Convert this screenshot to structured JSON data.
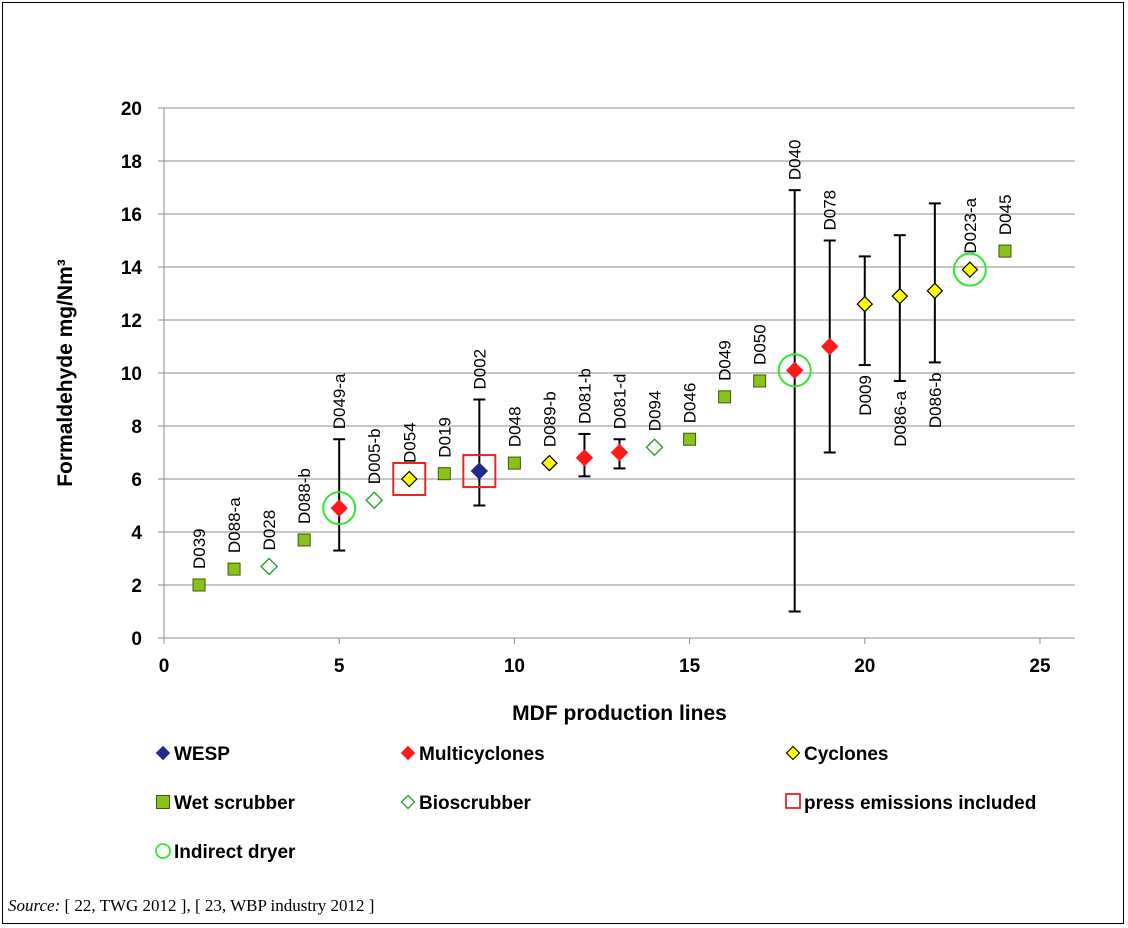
{
  "chart_data": {
    "type": "scatter",
    "xlabel": "MDF production lines",
    "ylabel": "Formaldehyde mg/Nm³",
    "xlim": [
      0,
      26
    ],
    "ylim": [
      0,
      20
    ],
    "x_ticks": [
      "0",
      "5",
      "10",
      "15",
      "20",
      "25"
    ],
    "y_ticks": [
      "0",
      "2",
      "4",
      "6",
      "8",
      "10",
      "12",
      "14",
      "16",
      "18",
      "20"
    ],
    "grid": "horizontal",
    "legend_position": "bottom",
    "colors": {
      "wesp": "#1f2a8c",
      "multicyclones": "#ff1a1a",
      "cyclones": "#ffff00",
      "wet_scrubber": "#88c21a",
      "bioscrubber": "#2e9e2e",
      "press_box": "#e8242a",
      "indirect_ring": "#2ee82e"
    },
    "points": [
      {
        "x": 1,
        "y": 2.0,
        "label": "D039",
        "series": "wet_scrubber"
      },
      {
        "x": 2,
        "y": 2.6,
        "label": "D088-a",
        "series": "wet_scrubber"
      },
      {
        "x": 3,
        "y": 2.7,
        "label": "D028",
        "series": "bioscrubber"
      },
      {
        "x": 4,
        "y": 3.7,
        "label": "D088-b",
        "series": "wet_scrubber"
      },
      {
        "x": 5,
        "y": 4.9,
        "label": "D049-a",
        "series": "multicyclones",
        "err": [
          3.3,
          7.5
        ],
        "indirect": true
      },
      {
        "x": 6,
        "y": 5.2,
        "label": "D005-b",
        "series": "bioscrubber"
      },
      {
        "x": 7,
        "y": 6.0,
        "label": "D054",
        "series": "cyclones",
        "press": true
      },
      {
        "x": 8,
        "y": 6.2,
        "label": "D019",
        "series": "wet_scrubber"
      },
      {
        "x": 9,
        "y": 6.3,
        "label": "D002",
        "series": "wesp",
        "err": [
          5.0,
          9.0
        ],
        "press": true
      },
      {
        "x": 10,
        "y": 6.6,
        "label": "D048",
        "series": "wet_scrubber"
      },
      {
        "x": 11,
        "y": 6.6,
        "label": "D089-b",
        "series": "cyclones"
      },
      {
        "x": 12,
        "y": 6.8,
        "label": "D081-b",
        "series": "multicyclones",
        "err": [
          6.1,
          7.7
        ]
      },
      {
        "x": 13,
        "y": 7.0,
        "label": "D081-d",
        "series": "multicyclones",
        "err": [
          6.4,
          7.5
        ]
      },
      {
        "x": 14,
        "y": 7.2,
        "label": "D094",
        "series": "bioscrubber"
      },
      {
        "x": 15,
        "y": 7.5,
        "label": "D046",
        "series": "wet_scrubber"
      },
      {
        "x": 16,
        "y": 9.1,
        "label": "D049",
        "series": "wet_scrubber"
      },
      {
        "x": 17,
        "y": 9.7,
        "label": "D050",
        "series": "wet_scrubber"
      },
      {
        "x": 18,
        "y": 10.1,
        "label": "D040",
        "series": "multicyclones",
        "err": [
          1.0,
          16.9
        ],
        "indirect": true
      },
      {
        "x": 19,
        "y": 11.0,
        "label": "D078",
        "series": "multicyclones",
        "err": [
          7.0,
          15.0
        ]
      },
      {
        "x": 20,
        "y": 12.6,
        "label": "D009",
        "series": "cyclones",
        "err": [
          10.3,
          14.4
        ],
        "label_pos": "below"
      },
      {
        "x": 21,
        "y": 12.9,
        "label": "D086-a",
        "series": "cyclones",
        "err": [
          9.7,
          15.2
        ],
        "label_pos": "below"
      },
      {
        "x": 22,
        "y": 13.1,
        "label": "D086-b",
        "series": "cyclones",
        "err": [
          10.4,
          16.4
        ],
        "label_pos": "below"
      },
      {
        "x": 23,
        "y": 13.9,
        "label": "D023-a",
        "series": "cyclones",
        "indirect": true
      },
      {
        "x": 24,
        "y": 14.6,
        "label": "D045",
        "series": "wet_scrubber"
      }
    ],
    "legend": [
      {
        "key": "wesp",
        "label": "WESP"
      },
      {
        "key": "multicyclones",
        "label": "Multicyclones"
      },
      {
        "key": "cyclones",
        "label": "Cyclones"
      },
      {
        "key": "wet_scrubber",
        "label": "Wet scrubber"
      },
      {
        "key": "bioscrubber",
        "label": "Bioscrubber"
      },
      {
        "key": "press",
        "label": "press emissions included"
      },
      {
        "key": "indirect",
        "label": "Indirect dryer"
      }
    ]
  },
  "source": {
    "prefix": "Source:",
    "text": " [ 22, TWG 2012 ], [ 23, WBP industry 2012 ]"
  }
}
